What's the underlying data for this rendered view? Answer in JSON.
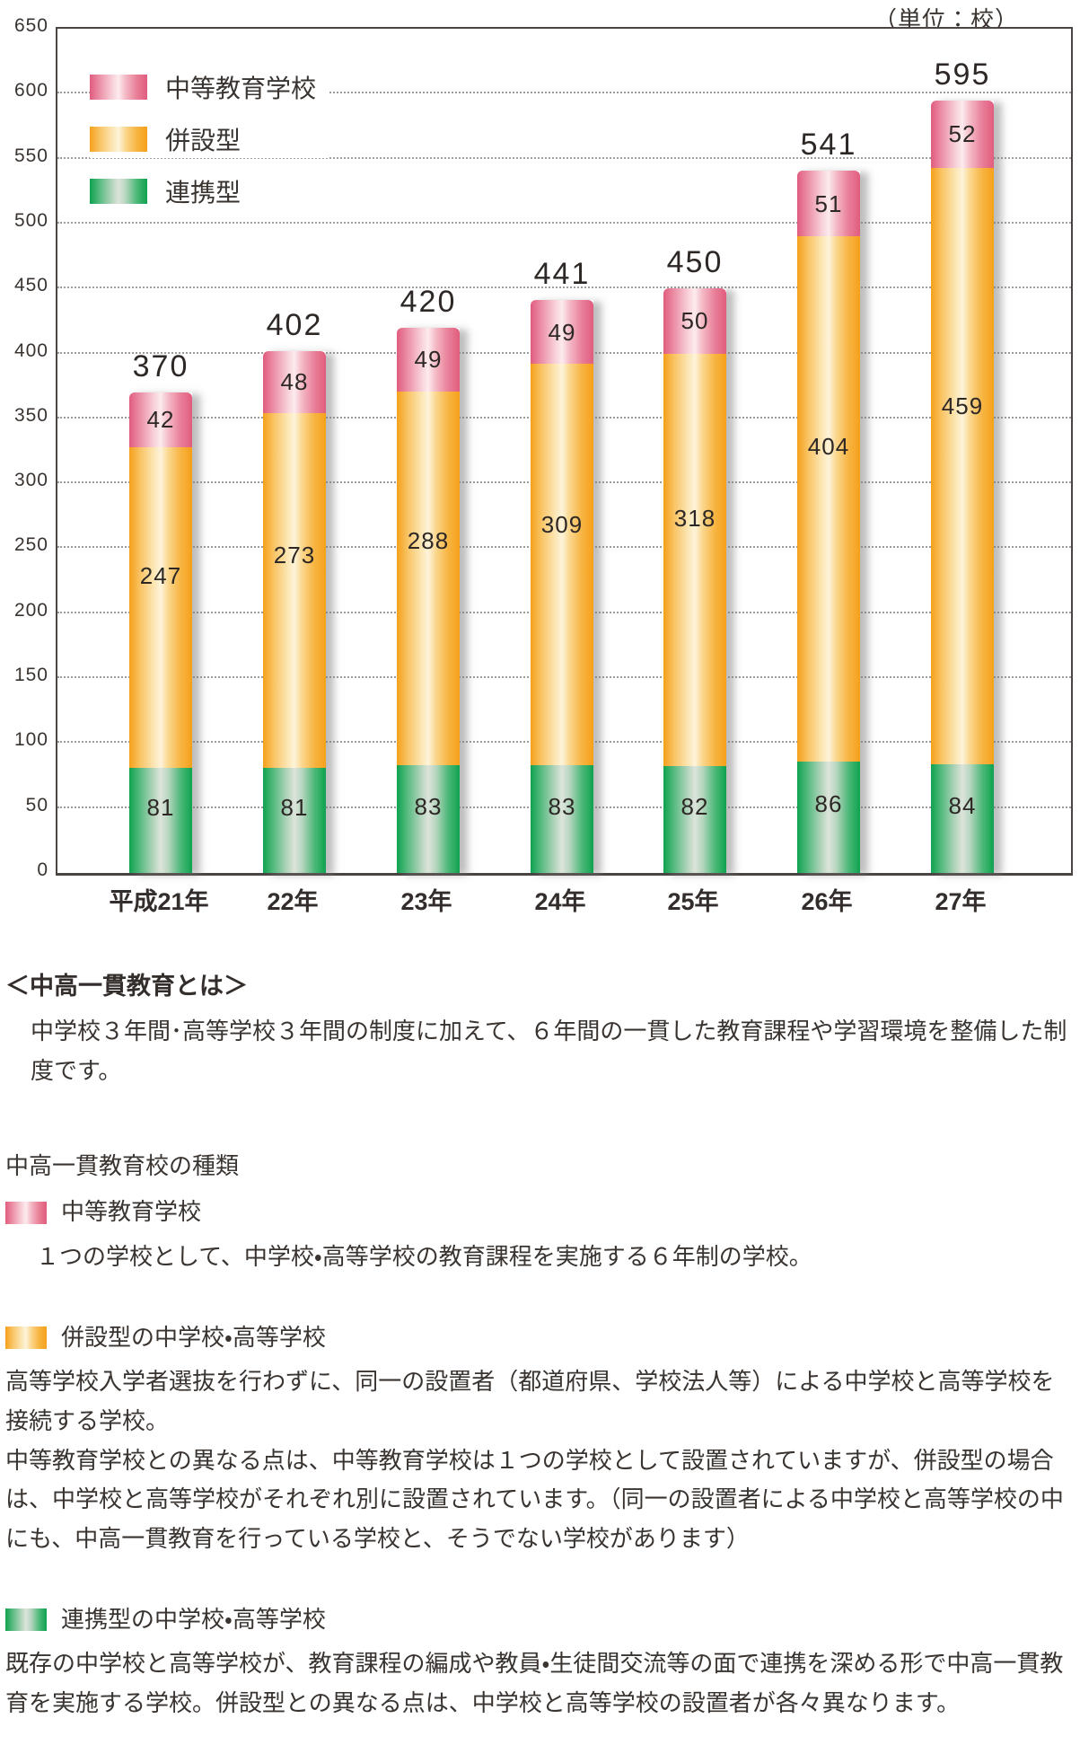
{
  "unit_label": "（単位：校）",
  "chart_data": {
    "type": "bar",
    "stacked": true,
    "title": "",
    "xlabel": "",
    "ylabel": "",
    "unit": "校",
    "categories": [
      "平成21年",
      "22年",
      "23年",
      "24年",
      "25年",
      "26年",
      "27年"
    ],
    "series": [
      {
        "name": "連携型",
        "css": "sw-green",
        "color": "#0fa24f",
        "label_pos": 0.38,
        "values": [
          81,
          81,
          83,
          83,
          82,
          86,
          84
        ]
      },
      {
        "name": "併設型",
        "css": "sw-orange",
        "color": "#f5a01a",
        "label_pos": 0.4,
        "values": [
          247,
          273,
          288,
          309,
          318,
          404,
          459
        ]
      },
      {
        "name": "中等教育学校",
        "css": "sw-pink",
        "color": "#e15c7e",
        "label_pos": 0.5,
        "values": [
          42,
          48,
          49,
          49,
          50,
          51,
          52
        ]
      }
    ],
    "totals": [
      370,
      402,
      420,
      441,
      450,
      541,
      595
    ],
    "ylim": [
      0,
      650
    ],
    "ytick_step": 50,
    "grid": "dotted horizontal",
    "legend_position": "top-left",
    "legend_order": [
      "中等教育学校",
      "併設型",
      "連携型"
    ]
  },
  "notes": {
    "heading": "＜中高一貫教育とは＞",
    "intro": "中学校３年間･高等学校３年間の制度に加えて、６年間の一貫した教育課程や学習環境を整備した制度です。",
    "types_title": "中高一貫教育校の種類",
    "types": [
      {
        "label": "中等教育学校",
        "description": [
          "１つの学校として、中学校・高等学校の教育課程を実施する６年制の学校。"
        ]
      },
      {
        "label": "併設型の中学校・高等学校",
        "description": [
          "高等学校入学者選抜を行わずに、同一の設置者（都道府県、学校法人等）による中学校と高等学校を接続する学校。",
          "中等教育学校との異なる点は、中等教育学校は１つの学校として設置されていますが、併設型の場合は、中学校と高等学校がそれぞれ別に設置されています。（同一の設置者による中学校と高等学校の中にも、中高一貫教育を行っている学校と、そうでない学校があります）"
        ]
      },
      {
        "label": "連携型の中学校・高等学校",
        "description": [
          "既存の中学校と高等学校が、教育課程の編成や教員・生徒間交流等の面で連携を深める形で中高一貫教育を実施する学校。併設型との異なる点は、中学校と高等学校の設置者が各々異なります。"
        ]
      }
    ]
  }
}
